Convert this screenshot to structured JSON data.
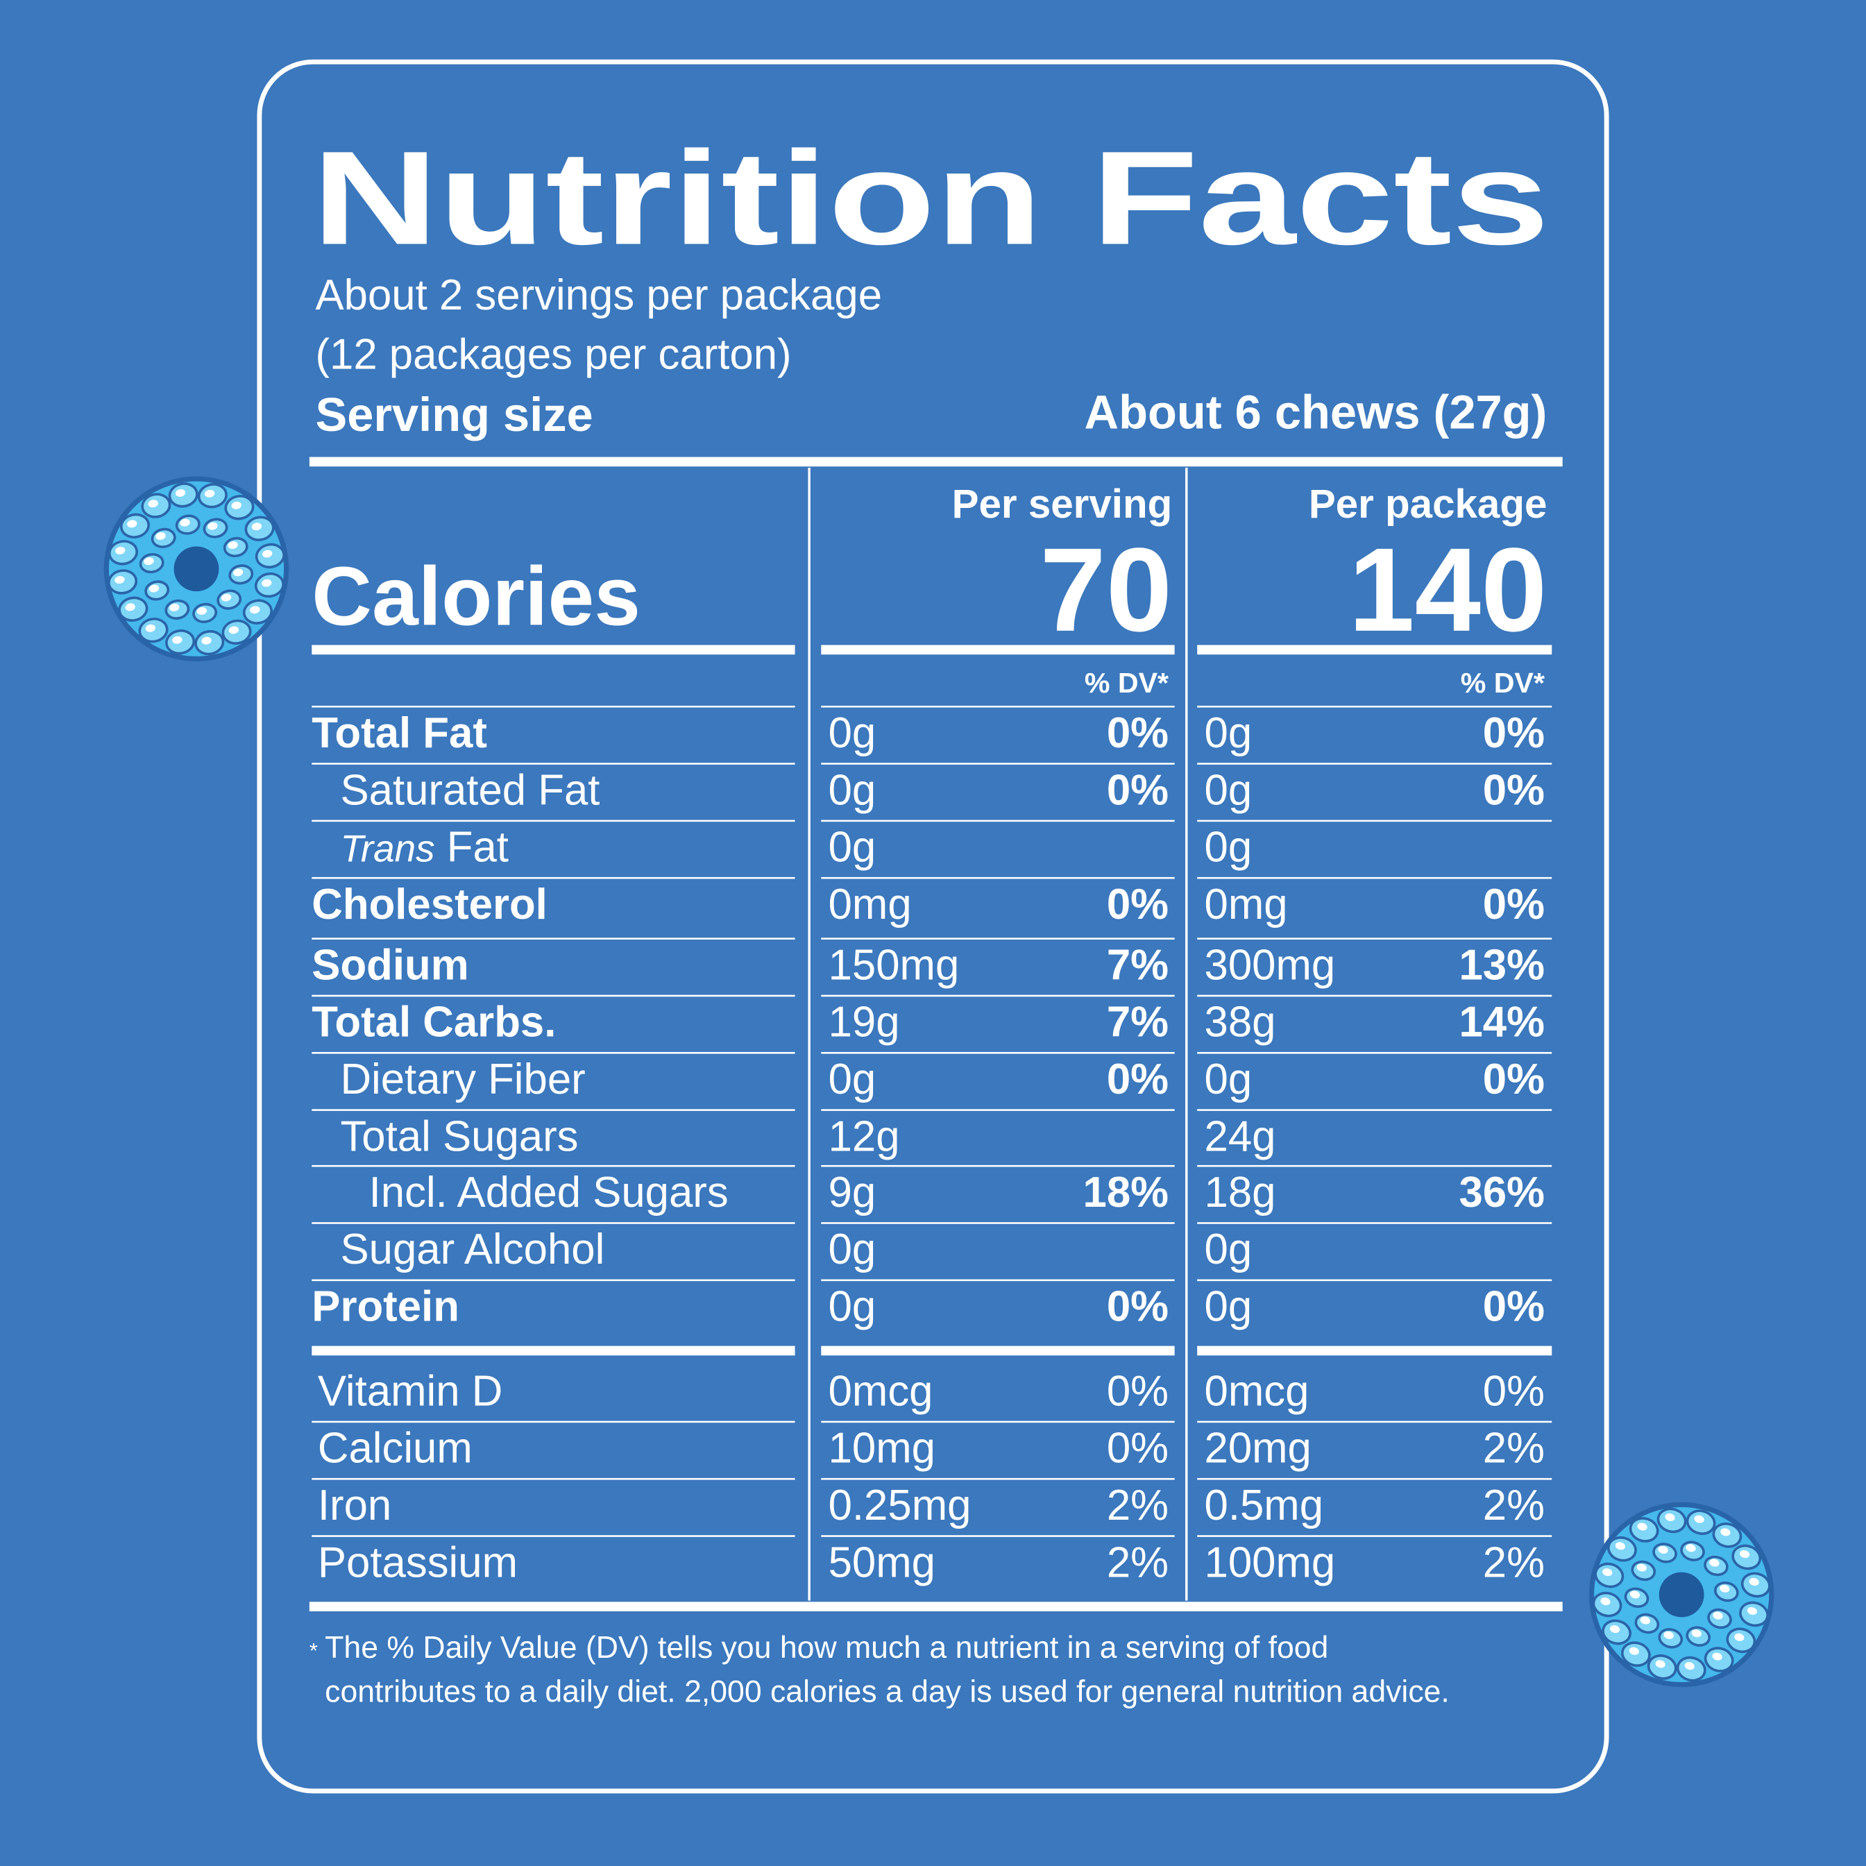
{
  "header": {
    "title": "Nutrition Facts",
    "servings": "About 2 servings per package",
    "packages": "(12 packages per carton)",
    "serving_size_label": "Serving size",
    "serving_size": "About 6 chews (27g)"
  },
  "columns": {
    "per_serving": "Per serving",
    "per_package": "Per package"
  },
  "calories": {
    "label": "Calories",
    "per_serving": "70",
    "per_package": "140"
  },
  "dv_header": {
    "per_serving": "% DV*",
    "per_package": "% DV*"
  },
  "nutrients": [
    {
      "label": "Total Fat",
      "bold": true,
      "indent": 0,
      "amount_serving": "0g",
      "dv_serving": "0%",
      "amount_package": "0g",
      "dv_package": "0%"
    },
    {
      "label": "Saturated Fat",
      "bold": false,
      "indent": 1,
      "amount_serving": "0g",
      "dv_serving": "0%",
      "amount_package": "0g",
      "dv_package": "0%"
    },
    {
      "label_italic": "Trans",
      "label": "Fat",
      "bold": false,
      "indent": 1,
      "amount_serving": "0g",
      "amount_package": "0g"
    },
    {
      "label": "Cholesterol",
      "bold": true,
      "indent": 0,
      "amount_serving": "0mg",
      "dv_serving": "0%",
      "amount_package": "0mg",
      "dv_package": "0%"
    },
    {
      "label": "Sodium",
      "bold": true,
      "indent": 0,
      "amount_serving": "150mg",
      "dv_serving": "7%",
      "amount_package": "300mg",
      "dv_package": "13%"
    },
    {
      "label": "Total Carbs.",
      "bold": true,
      "indent": 0,
      "amount_serving": "19g",
      "dv_serving": "7%",
      "amount_package": "38g",
      "dv_package": "14%"
    },
    {
      "label": "Dietary Fiber",
      "bold": false,
      "indent": 1,
      "amount_serving": "0g",
      "dv_serving": "0%",
      "amount_package": "0g",
      "dv_package": "0%"
    },
    {
      "label": "Total Sugars",
      "bold": false,
      "indent": 1,
      "amount_serving": "12g",
      "amount_package": "24g"
    },
    {
      "label": "Incl. Added Sugars",
      "bold": false,
      "indent": 2,
      "amount_serving": "9g",
      "dv_serving": "18%",
      "amount_package": "18g",
      "dv_package": "36%"
    },
    {
      "label": "Sugar Alcohol",
      "bold": false,
      "indent": 1,
      "amount_serving": "0g",
      "amount_package": "0g"
    },
    {
      "label": "Protein",
      "bold": true,
      "indent": 0,
      "amount_serving": "0g",
      "dv_serving": "0%",
      "amount_package": "0g",
      "dv_package": "0%"
    }
  ],
  "vitamins": [
    {
      "label": "Vitamin D",
      "amount_serving": "0mcg",
      "dv_serving": "0%",
      "amount_package": "0mcg",
      "dv_package": "0%"
    },
    {
      "label": "Calcium",
      "amount_serving": "10mg",
      "dv_serving": "0%",
      "amount_package": "20mg",
      "dv_package": "2%"
    },
    {
      "label": "Iron",
      "amount_serving": "0.25mg",
      "dv_serving": "2%",
      "amount_package": "0.5mg",
      "dv_package": "2%"
    },
    {
      "label": "Potassium",
      "amount_serving": "50mg",
      "dv_serving": "2%",
      "amount_package": "100mg",
      "dv_package": "2%"
    }
  ],
  "footnote": {
    "marker": "*",
    "line1": "The % Daily Value (DV) tells you how much a nutrient in a serving of food",
    "line2": "contributes to a daily diet. 2,000 calories a day is used for general nutrition advice."
  }
}
